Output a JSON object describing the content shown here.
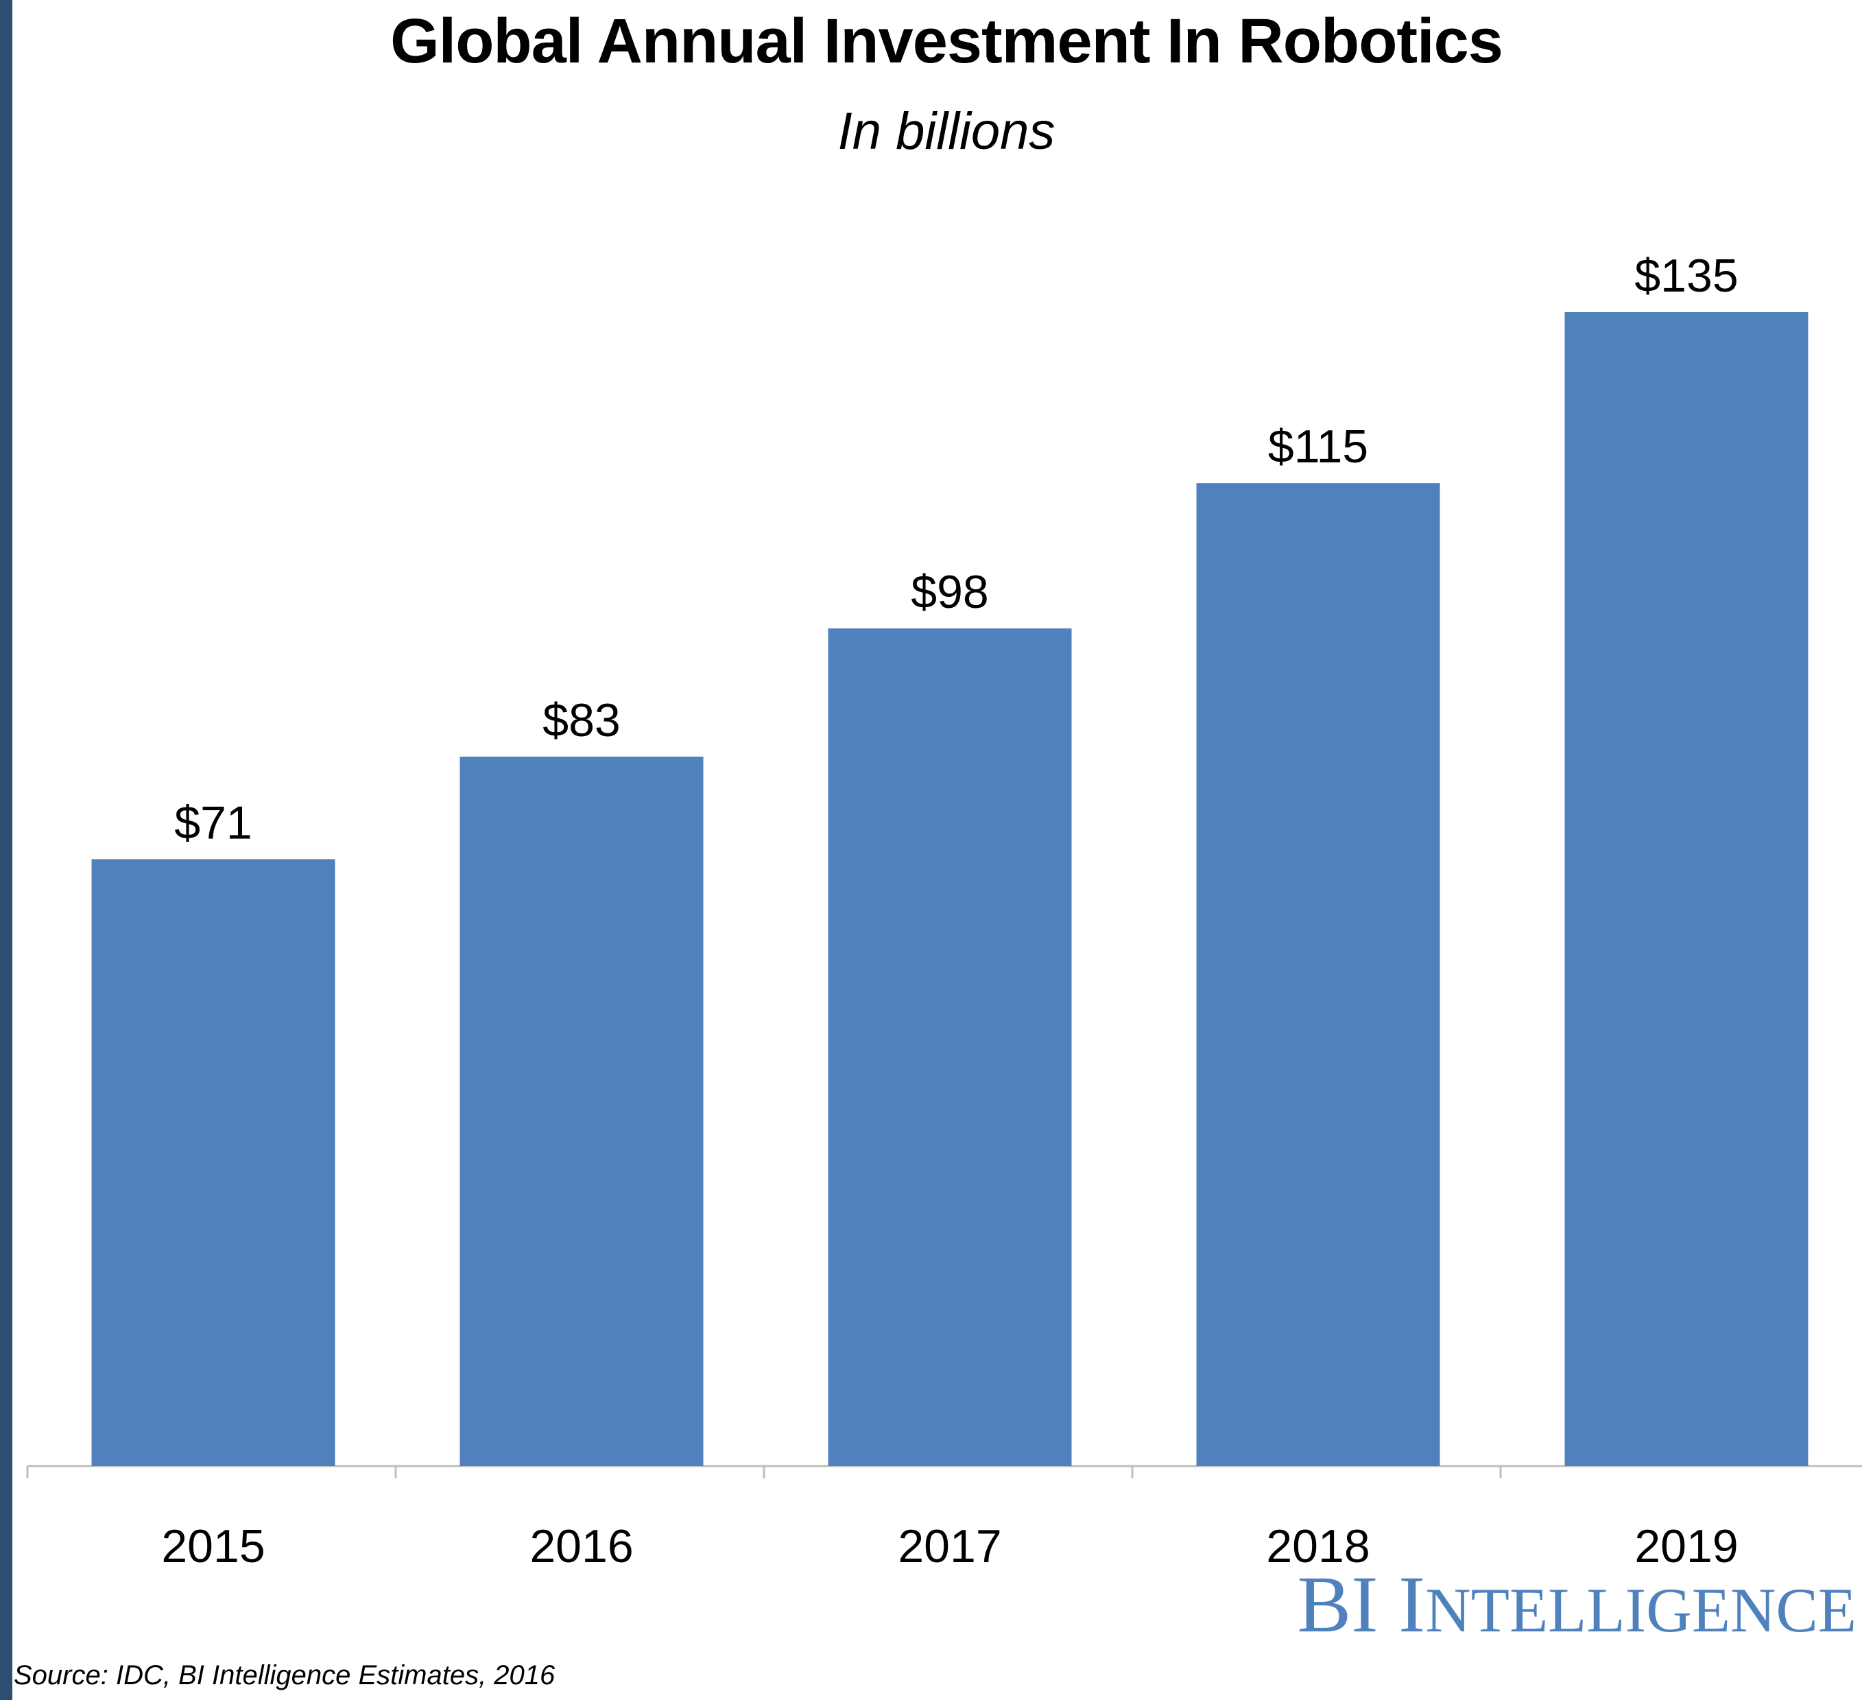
{
  "chart_data": {
    "type": "bar",
    "title": "Global Annual Investment In Robotics",
    "subtitle": "In billions",
    "xlabel": "",
    "ylabel": "",
    "categories": [
      "2015",
      "2016",
      "2017",
      "2018",
      "2019"
    ],
    "values": [
      71,
      83,
      98,
      115,
      135
    ],
    "value_labels": [
      "$71",
      "$83",
      "$98",
      "$115",
      "$135"
    ],
    "ylim": [
      0,
      135
    ],
    "grid": false,
    "bar_color": "#4F81BD",
    "axis_color": "#BFBFBF",
    "label_color": "#000000"
  },
  "branding": {
    "logo_text": "BI Intelligence",
    "logo_color": "#4F81BD"
  },
  "source_note": "Source: IDC, BI Intelligence Estimates, 2016",
  "colors": {
    "left_border": "#2E4D73",
    "background": "#FFFFFF"
  }
}
